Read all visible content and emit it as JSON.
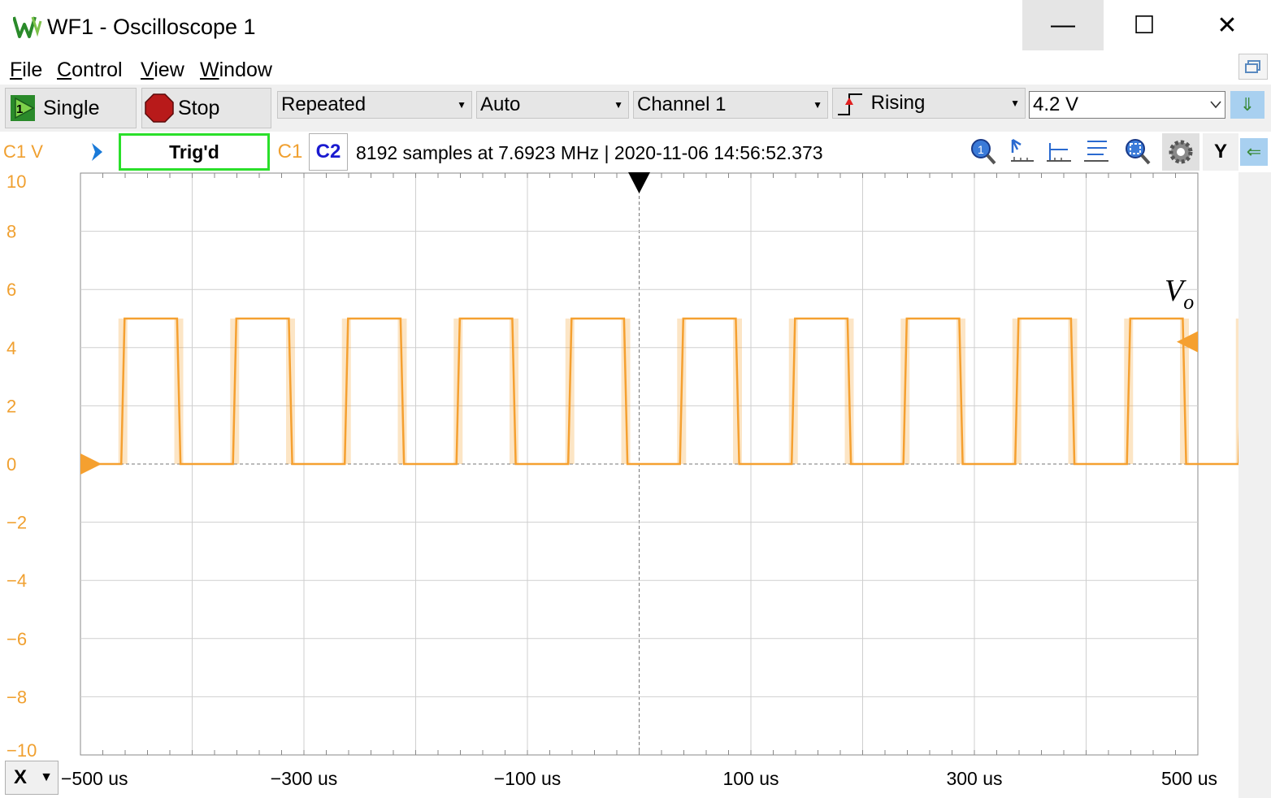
{
  "window": {
    "title": "WF1 - Oscilloscope 1",
    "controls": {
      "minimize": "—",
      "maximize": "☐",
      "close": "✕"
    }
  },
  "menu": {
    "items": [
      {
        "underlined": "F",
        "rest": "ile"
      },
      {
        "underlined": "C",
        "rest": "ontrol"
      },
      {
        "underlined": "V",
        "rest": "iew"
      },
      {
        "underlined": "W",
        "rest": "indow"
      }
    ]
  },
  "toolbar": {
    "single_label": "Single",
    "stop_label": "Stop",
    "mode_value": "Repeated",
    "trigger_type_value": "Auto",
    "source_value": "Channel 1",
    "edge_value": "Rising",
    "level_value": "4.2 V",
    "colors": {
      "stop": "#b81a1a",
      "single": "#2a8a2a"
    }
  },
  "infobar": {
    "unit": "C1 V",
    "status": "Trig'd",
    "channel_tabs": [
      "C1",
      "C2"
    ],
    "acquisition": "8192 samples at 7.6923 MHz | 2020-11-06 14:56:52.373",
    "y_button": "Y",
    "tools": [
      "zoom-one-icon",
      "cursor-icon",
      "marker-icon",
      "measure-icon",
      "zoom-fit-icon",
      "gear-icon"
    ]
  },
  "x_axis_button": "X",
  "annotation": {
    "base": "V",
    "sub": "o"
  },
  "chart_data": {
    "type": "line",
    "series": [
      {
        "name": "C1",
        "color": "#f5a030",
        "low": 0,
        "high": 5,
        "period_us": 100,
        "first_rise_us": -462,
        "duty": 0.5
      }
    ],
    "xlim": [
      -500,
      500
    ],
    "ylim": [
      -10,
      10
    ],
    "x_ticks": [
      -500,
      -300,
      -100,
      100,
      300,
      500
    ],
    "x_tick_labels": [
      "−500 us",
      "−300 us",
      "−100 us",
      "100 us",
      "300 us",
      "500 us"
    ],
    "y_ticks": [
      10,
      8,
      6,
      4,
      2,
      0,
      -2,
      -4,
      -6,
      -8,
      -10
    ],
    "y_tick_labels": [
      "10",
      "8",
      "6",
      "4",
      "2",
      "0",
      "−2",
      "−4",
      "−6",
      "−8",
      "−10"
    ],
    "grid": true,
    "axis_color": "#f0a030",
    "trigger_level": 4.2,
    "trigger_position_us": 0,
    "offset_marker": 0
  }
}
